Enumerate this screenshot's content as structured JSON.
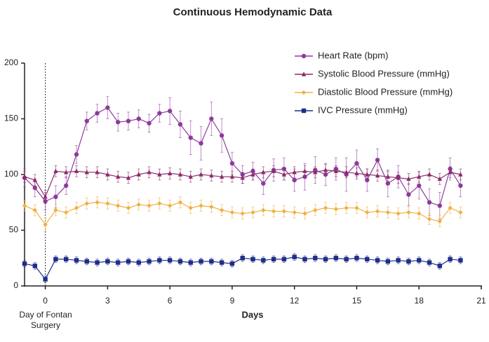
{
  "chart_data": {
    "type": "line",
    "title": "Continuous Hemodynamic Data",
    "x_label": "Days",
    "annotation": "Day of Fontan Surgery",
    "vline": 0,
    "x": [
      -1,
      -0.5,
      0,
      0.5,
      1,
      1.5,
      2,
      2.5,
      3,
      3.5,
      4,
      4.5,
      5,
      5.5,
      6,
      6.5,
      7,
      7.5,
      8,
      8.5,
      9,
      9.5,
      10,
      10.5,
      11,
      11.5,
      12,
      12.5,
      13,
      13.5,
      14,
      14.5,
      15,
      15.5,
      16,
      16.5,
      17,
      17.5,
      18,
      18.5,
      19,
      19.5,
      20
    ],
    "series": [
      {
        "name": "Heart Rate (bpm)",
        "color": "#8e3a9d",
        "marker": "circle",
        "values": [
          97,
          88,
          76,
          80,
          90,
          118,
          148,
          155,
          160,
          147,
          148,
          150,
          146,
          155,
          157,
          145,
          133,
          128,
          150,
          135,
          110,
          100,
          103,
          92,
          104,
          105,
          95,
          98,
          104,
          100,
          105,
          100,
          110,
          95,
          113,
          92,
          98,
          82,
          90,
          75,
          72,
          105,
          90
        ],
        "errors": [
          8,
          8,
          8,
          10,
          8,
          8,
          8,
          8,
          10,
          8,
          8,
          8,
          8,
          8,
          12,
          12,
          15,
          15,
          15,
          15,
          10,
          8,
          8,
          10,
          10,
          10,
          10,
          12,
          12,
          10,
          10,
          15,
          12,
          10,
          10,
          12,
          10,
          10,
          12,
          12,
          12,
          10,
          10
        ]
      },
      {
        "name": "Systolic Blood Pressure (mmHg)",
        "color": "#8b2a6b",
        "marker": "triangle",
        "values": [
          98,
          95,
          80,
          103,
          102,
          103,
          102,
          102,
          100,
          98,
          97,
          100,
          102,
          100,
          101,
          100,
          98,
          100,
          99,
          98,
          98,
          97,
          100,
          102,
          103,
          100,
          102,
          103,
          102,
          104,
          103,
          102,
          101,
          100,
          99,
          98,
          97,
          96,
          98,
          100,
          96,
          102,
          100
        ],
        "errors": [
          5,
          5,
          6,
          5,
          5,
          5,
          5,
          5,
          5,
          5,
          5,
          5,
          5,
          5,
          5,
          5,
          5,
          5,
          5,
          5,
          5,
          5,
          5,
          5,
          5,
          5,
          5,
          5,
          5,
          5,
          5,
          5,
          5,
          5,
          5,
          5,
          5,
          5,
          5,
          5,
          5,
          5,
          5
        ]
      },
      {
        "name": "Diastolic Blood Pressure (mmHg)",
        "color": "#f0b040",
        "marker": "diamond",
        "values": [
          72,
          68,
          55,
          68,
          66,
          70,
          74,
          75,
          74,
          72,
          70,
          73,
          72,
          74,
          72,
          75,
          70,
          72,
          71,
          68,
          66,
          65,
          66,
          68,
          67,
          67,
          66,
          65,
          68,
          70,
          69,
          70,
          70,
          66,
          67,
          66,
          65,
          66,
          65,
          60,
          58,
          70,
          66
        ],
        "errors": [
          5,
          5,
          6,
          5,
          5,
          5,
          5,
          5,
          5,
          5,
          5,
          5,
          5,
          5,
          5,
          5,
          5,
          5,
          5,
          5,
          5,
          5,
          5,
          5,
          5,
          5,
          5,
          5,
          5,
          5,
          5,
          5,
          5,
          5,
          5,
          5,
          5,
          5,
          5,
          5,
          5,
          5,
          5
        ]
      },
      {
        "name": "IVC Pressure (mmHg)",
        "color": "#1f2d8a",
        "marker": "square",
        "values": [
          20,
          18,
          6,
          24,
          24,
          23,
          22,
          21,
          22,
          21,
          22,
          21,
          22,
          23,
          23,
          22,
          21,
          22,
          22,
          21,
          20,
          25,
          24,
          23,
          24,
          24,
          26,
          24,
          25,
          24,
          25,
          24,
          25,
          24,
          23,
          22,
          23,
          22,
          23,
          21,
          18,
          24,
          23
        ],
        "errors": [
          3,
          3,
          3,
          3,
          3,
          3,
          3,
          3,
          3,
          3,
          3,
          3,
          3,
          3,
          3,
          3,
          3,
          3,
          3,
          3,
          3,
          3,
          3,
          3,
          3,
          3,
          3,
          3,
          3,
          3,
          3,
          3,
          3,
          3,
          3,
          3,
          3,
          3,
          3,
          3,
          3,
          3,
          3
        ]
      }
    ],
    "xlim": [
      -1,
      21
    ],
    "xticks": [
      0,
      3,
      6,
      9,
      12,
      15,
      18,
      21
    ],
    "ylim": [
      0,
      200
    ],
    "yticks": [
      0,
      50,
      100,
      150,
      200
    ],
    "legend": "top-right",
    "grid": false
  }
}
